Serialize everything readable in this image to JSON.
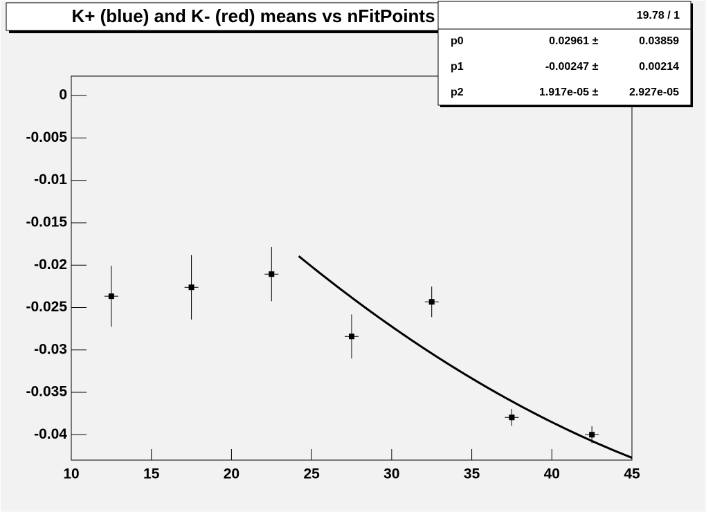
{
  "chart_data": {
    "type": "errorbar",
    "title": "K+ (blue) and K- (red) means vs nFitPoints",
    "x": [
      12.5,
      17.5,
      22.5,
      27.5,
      32.5,
      37.5,
      42.5
    ],
    "values": [
      -0.02367,
      -0.02261,
      -0.02106,
      -0.02841,
      -0.02433,
      -0.03796,
      -0.04
    ],
    "errors": [
      0.0036,
      0.0038,
      0.0032,
      0.0026,
      0.0018,
      0.001,
      0.001
    ],
    "color": "#000000",
    "xlim": [
      10,
      45
    ],
    "xticks": [
      10,
      15,
      20,
      25,
      30,
      35,
      40,
      45
    ],
    "ylim": [
      -0.043,
      0.0023
    ],
    "yticks": [
      0,
      -0.005,
      -0.01,
      -0.015,
      -0.02,
      -0.025,
      -0.03,
      -0.035,
      -0.04
    ],
    "fit": {
      "range": [
        24.2,
        45
      ],
      "color": "#000000",
      "chi2_ndf": "19.78 / 1",
      "params": [
        {
          "name": "p0",
          "value": 0.02961,
          "error": 0.03859
        },
        {
          "name": "p1",
          "value": -0.00247,
          "error": 0.00214
        },
        {
          "name": "p2",
          "value": {
            "value": 1.917e-05,
            "label": "1.917e-05"
          },
          "error": {
            "value": 2.927e-05,
            "label": "2.927e-05"
          }
        }
      ]
    }
  }
}
